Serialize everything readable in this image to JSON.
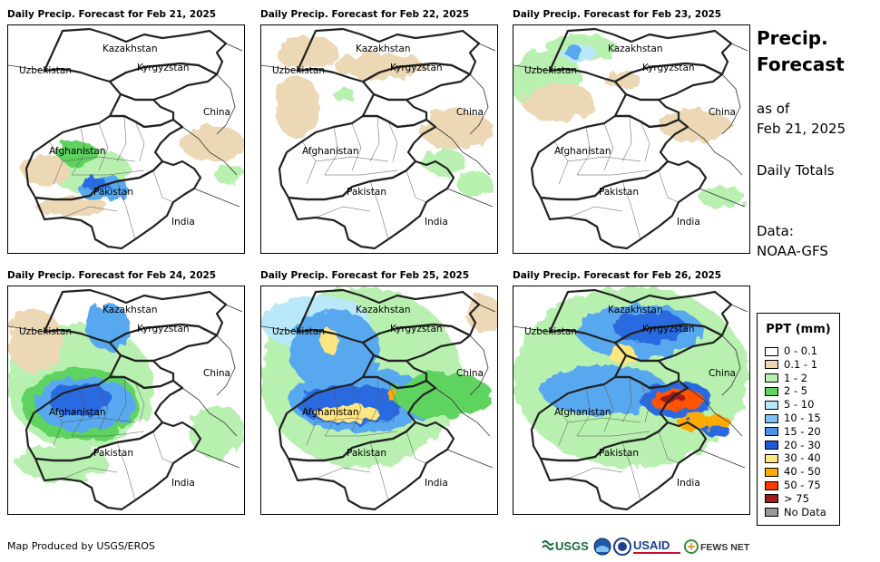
{
  "panels": [
    {
      "title": "Daily Precip. Forecast for Feb 21, 2025",
      "date": "Feb 21, 2025",
      "blobs": [
        {
          "cx": 90,
          "cy": 160,
          "rx": 45,
          "ry": 25,
          "c": "#b8f0b0"
        },
        {
          "cx": 75,
          "cy": 140,
          "rx": 22,
          "ry": 14,
          "c": "#5fd35f"
        },
        {
          "cx": 105,
          "cy": 180,
          "rx": 28,
          "ry": 14,
          "c": "#59a8ef"
        },
        {
          "cx": 95,
          "cy": 175,
          "rx": 14,
          "ry": 8,
          "c": "#2a6ae0"
        },
        {
          "cx": 70,
          "cy": 200,
          "rx": 40,
          "ry": 10,
          "c": "#ecd8b5"
        },
        {
          "cx": 225,
          "cy": 130,
          "rx": 35,
          "ry": 20,
          "c": "#ecd8b5"
        },
        {
          "cx": 245,
          "cy": 165,
          "rx": 18,
          "ry": 10,
          "c": "#b8f0b0"
        },
        {
          "cx": 40,
          "cy": 160,
          "rx": 25,
          "ry": 18,
          "c": "#ecd8b5"
        }
      ]
    },
    {
      "title": "Daily Precip. Forecast for Feb 22, 2025",
      "date": "Feb 22, 2025",
      "blobs": [
        {
          "cx": 50,
          "cy": 30,
          "rx": 35,
          "ry": 18,
          "c": "#ecd8b5"
        },
        {
          "cx": 130,
          "cy": 45,
          "rx": 50,
          "ry": 14,
          "c": "#ecd8b5"
        },
        {
          "cx": 40,
          "cy": 90,
          "rx": 25,
          "ry": 35,
          "c": "#ecd8b5"
        },
        {
          "cx": 215,
          "cy": 115,
          "rx": 40,
          "ry": 22,
          "c": "#ecd8b5"
        },
        {
          "cx": 200,
          "cy": 150,
          "rx": 25,
          "ry": 14,
          "c": "#b8f0b0"
        },
        {
          "cx": 235,
          "cy": 175,
          "rx": 20,
          "ry": 14,
          "c": "#b8f0b0"
        },
        {
          "cx": 90,
          "cy": 75,
          "rx": 12,
          "ry": 8,
          "c": "#b8f0b0"
        }
      ]
    },
    {
      "title": "Daily Precip. Forecast for Feb 23, 2025",
      "date": "Feb 23, 2025",
      "blobs": [
        {
          "cx": 35,
          "cy": 60,
          "rx": 40,
          "ry": 35,
          "c": "#b8f0b0"
        },
        {
          "cx": 75,
          "cy": 25,
          "rx": 40,
          "ry": 15,
          "c": "#b8f0b0"
        },
        {
          "cx": 70,
          "cy": 30,
          "rx": 20,
          "ry": 10,
          "c": "#b9e8f8"
        },
        {
          "cx": 65,
          "cy": 28,
          "rx": 10,
          "ry": 7,
          "c": "#59a8ef"
        },
        {
          "cx": 50,
          "cy": 85,
          "rx": 40,
          "ry": 20,
          "c": "#ecd8b5"
        },
        {
          "cx": 200,
          "cy": 110,
          "rx": 40,
          "ry": 18,
          "c": "#ecd8b5"
        },
        {
          "cx": 230,
          "cy": 190,
          "rx": 25,
          "ry": 12,
          "c": "#b8f0b0"
        },
        {
          "cx": 120,
          "cy": 60,
          "rx": 20,
          "ry": 10,
          "c": "#ecd8b5"
        }
      ]
    },
    {
      "title": "Daily Precip. Forecast for Feb 24, 2025",
      "date": "Feb 24, 2025",
      "blobs": [
        {
          "cx": 80,
          "cy": 110,
          "rx": 80,
          "ry": 70,
          "c": "#b8f0b0"
        },
        {
          "cx": 80,
          "cy": 130,
          "rx": 65,
          "ry": 40,
          "c": "#5fd35f"
        },
        {
          "cx": 85,
          "cy": 130,
          "rx": 55,
          "ry": 30,
          "c": "#59a8ef"
        },
        {
          "cx": 80,
          "cy": 125,
          "rx": 35,
          "ry": 18,
          "c": "#2a6ae0"
        },
        {
          "cx": 110,
          "cy": 45,
          "rx": 25,
          "ry": 25,
          "c": "#59a8ef"
        },
        {
          "cx": 30,
          "cy": 60,
          "rx": 30,
          "ry": 35,
          "c": "#ecd8b5"
        },
        {
          "cx": 230,
          "cy": 160,
          "rx": 30,
          "ry": 30,
          "c": "#b8f0b0"
        },
        {
          "cx": 60,
          "cy": 195,
          "rx": 50,
          "ry": 20,
          "c": "#b8f0b0"
        }
      ]
    },
    {
      "title": "Daily Precip. Forecast for Feb 25, 2025",
      "date": "Feb 25, 2025",
      "blobs": [
        {
          "cx": 110,
          "cy": 100,
          "rx": 110,
          "ry": 100,
          "c": "#b8f0b0"
        },
        {
          "cx": 60,
          "cy": 40,
          "rx": 60,
          "ry": 30,
          "c": "#b9e8f8"
        },
        {
          "cx": 80,
          "cy": 70,
          "rx": 50,
          "ry": 45,
          "c": "#59a8ef"
        },
        {
          "cx": 110,
          "cy": 125,
          "rx": 80,
          "ry": 35,
          "c": "#59a8ef"
        },
        {
          "cx": 100,
          "cy": 130,
          "rx": 60,
          "ry": 22,
          "c": "#2a6ae0"
        },
        {
          "cx": 75,
          "cy": 60,
          "rx": 10,
          "ry": 14,
          "c": "#ffe680"
        },
        {
          "cx": 95,
          "cy": 140,
          "rx": 35,
          "ry": 10,
          "c": "#ffe680"
        },
        {
          "cx": 150,
          "cy": 120,
          "rx": 12,
          "ry": 7,
          "c": "#ffaa00"
        },
        {
          "cx": 200,
          "cy": 120,
          "rx": 55,
          "ry": 25,
          "c": "#5fd35f"
        },
        {
          "cx": 245,
          "cy": 30,
          "rx": 20,
          "ry": 20,
          "c": "#ecd8b5"
        }
      ]
    },
    {
      "title": "Daily Precip. Forecast for Feb 26, 2025",
      "date": "Feb 26, 2025",
      "blobs": [
        {
          "cx": 130,
          "cy": 100,
          "rx": 130,
          "ry": 100,
          "c": "#b8f0b0"
        },
        {
          "cx": 140,
          "cy": 50,
          "rx": 70,
          "ry": 30,
          "c": "#59a8ef"
        },
        {
          "cx": 150,
          "cy": 45,
          "rx": 40,
          "ry": 18,
          "c": "#2a6ae0"
        },
        {
          "cx": 120,
          "cy": 75,
          "rx": 15,
          "ry": 10,
          "c": "#ffe680"
        },
        {
          "cx": 100,
          "cy": 115,
          "rx": 70,
          "ry": 28,
          "c": "#59a8ef"
        },
        {
          "cx": 180,
          "cy": 125,
          "rx": 40,
          "ry": 20,
          "c": "#2a6ae0"
        },
        {
          "cx": 180,
          "cy": 125,
          "rx": 30,
          "ry": 12,
          "c": "#ff5500"
        },
        {
          "cx": 175,
          "cy": 123,
          "rx": 14,
          "ry": 6,
          "c": "#a01c1c"
        },
        {
          "cx": 210,
          "cy": 150,
          "rx": 30,
          "ry": 10,
          "c": "#ffaa00"
        },
        {
          "cx": 225,
          "cy": 160,
          "rx": 15,
          "ry": 6,
          "c": "#2a6ae0"
        }
      ]
    }
  ],
  "map_labels": {
    "kazakhstan": "Kazakhstan",
    "uzbekistan": "Uzbekistan",
    "kyrgyzstan": "Kyrgyzstan",
    "china": "China",
    "afghanistan": "Afghanistan",
    "pakistan": "Pakistan",
    "india": "India"
  },
  "sidebar": {
    "title_line1": "Precip.",
    "title_line2": "Forecast",
    "as_of_line1": "as of",
    "as_of_line2": "Feb 21, 2025",
    "daily_totals": "Daily Totals",
    "data_line1": "Data:",
    "data_line2": "NOAA-GFS"
  },
  "legend": {
    "title": "PPT (mm)",
    "items": [
      {
        "label": "0 - 0.1",
        "color": "#ffffff"
      },
      {
        "label": "0.1 - 1",
        "color": "#ecd8b5"
      },
      {
        "label": "1 - 2",
        "color": "#b8f0b0"
      },
      {
        "label": "2 - 5",
        "color": "#5fd35f"
      },
      {
        "label": "5 - 10",
        "color": "#b9e8f8"
      },
      {
        "label": "10 - 15",
        "color": "#7fc0f5"
      },
      {
        "label": "15 - 20",
        "color": "#4a90e8"
      },
      {
        "label": "20 - 30",
        "color": "#1e5ad6"
      },
      {
        "label": "30 - 40",
        "color": "#ffe680"
      },
      {
        "label": "40 - 50",
        "color": "#ffaa00"
      },
      {
        "label": "50 - 75",
        "color": "#ff3a00"
      },
      {
        "label": "> 75",
        "color": "#a01c1c"
      },
      {
        "label": "No Data",
        "color": "#999999"
      }
    ]
  },
  "footer": {
    "credit": "Map Produced by USGS/EROS"
  },
  "logos": {
    "usgs": "USGS",
    "usaid": "USAID",
    "fewsnet": "FEWS NET"
  }
}
